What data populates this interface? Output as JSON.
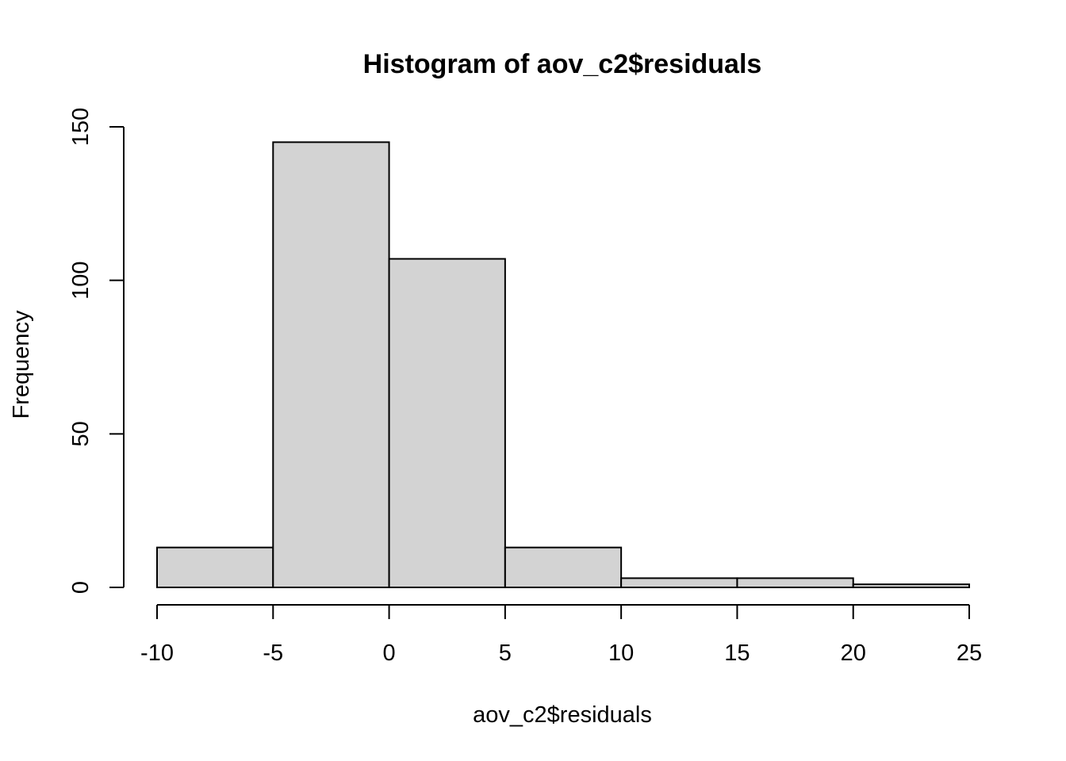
{
  "chart_data": {
    "type": "bar",
    "title": "Histogram of aov_c2$residuals",
    "xlabel": "aov_c2$residuals",
    "ylabel": "Frequency",
    "bins": [
      {
        "from": -10,
        "to": -5,
        "count": 13
      },
      {
        "from": -5,
        "to": 0,
        "count": 145
      },
      {
        "from": 0,
        "to": 5,
        "count": 107
      },
      {
        "from": 5,
        "to": 10,
        "count": 13
      },
      {
        "from": 10,
        "to": 15,
        "count": 3
      },
      {
        "from": 15,
        "to": 20,
        "count": 3
      },
      {
        "from": 20,
        "to": 25,
        "count": 1
      }
    ],
    "xlim": [
      -10,
      25
    ],
    "ylim": [
      0,
      150
    ],
    "x_ticks": [
      -10,
      -5,
      0,
      5,
      10,
      15,
      20,
      25
    ],
    "y_ticks": [
      0,
      50,
      100,
      150
    ],
    "grid": false,
    "legend": "none",
    "bar_fill": "#d3d3d3",
    "bar_stroke": "#000000"
  }
}
